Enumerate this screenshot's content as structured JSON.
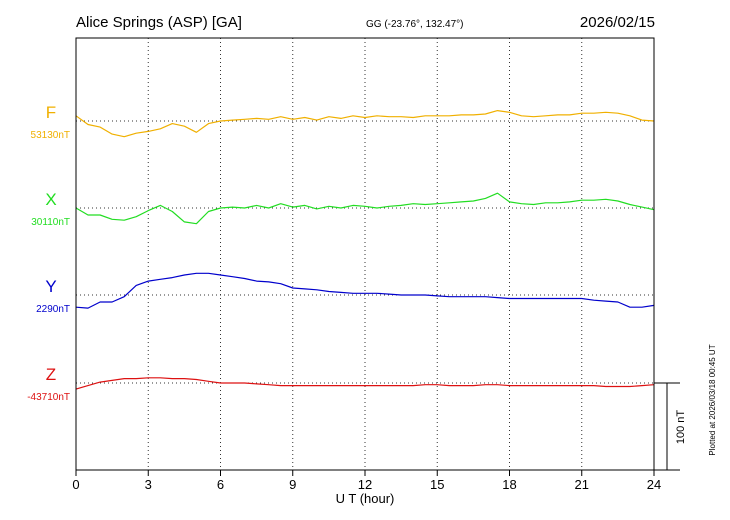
{
  "header": {
    "station": "Alice Springs (ASP)  [GA]",
    "coords": "GG (-23.76°, 132.47°)",
    "date": "2026/02/15"
  },
  "footer_note": "Plotted at 2026/03/18 00:45 UT",
  "scale_label": "100 nT",
  "chart_data": {
    "type": "line",
    "xlabel": "U T (hour)",
    "xlim": [
      0,
      24
    ],
    "x_ticks": [
      "0",
      "3",
      "6",
      "9",
      "12",
      "15",
      "18",
      "21",
      "24"
    ],
    "series": [
      {
        "name": "F",
        "baseline_label": "53130nT",
        "color": "#f0b000",
        "baseline": 53130,
        "x": [
          0,
          0.5,
          1,
          1.5,
          2,
          2.5,
          3,
          3.5,
          4,
          4.5,
          5,
          5.5,
          6,
          6.5,
          7,
          7.5,
          8,
          8.5,
          9,
          9.5,
          10,
          10.5,
          11,
          11.5,
          12,
          12.5,
          13,
          13.5,
          14,
          14.5,
          15,
          15.5,
          16,
          16.5,
          17,
          17.5,
          18,
          18.5,
          19,
          19.5,
          20,
          20.5,
          21,
          21.5,
          22,
          22.5,
          23,
          23.5,
          24
        ],
        "values": [
          53136,
          53126,
          53123,
          53115,
          53112,
          53116,
          53118,
          53121,
          53127,
          53124,
          53117,
          53127,
          53130,
          53131,
          53132,
          53133,
          53132,
          53135,
          53132,
          53134,
          53131,
          53135,
          53133,
          53136,
          53134,
          53136,
          53135,
          53135,
          53134,
          53136,
          53136,
          53136,
          53137,
          53137,
          53138,
          53142,
          53140,
          53136,
          53135,
          53136,
          53137,
          53137,
          53139,
          53139,
          53140,
          53139,
          53136,
          53131,
          53130
        ]
      },
      {
        "name": "X",
        "baseline_label": "30110nT",
        "color": "#22dd22",
        "baseline": 30110,
        "x": [
          0,
          0.5,
          1,
          1.5,
          2,
          2.5,
          3,
          3.5,
          4,
          4.5,
          5,
          5.5,
          6,
          6.5,
          7,
          7.5,
          8,
          8.5,
          9,
          9.5,
          10,
          10.5,
          11,
          11.5,
          12,
          12.5,
          13,
          13.5,
          14,
          14.5,
          15,
          15.5,
          16,
          16.5,
          17,
          17.5,
          18,
          18.5,
          19,
          19.5,
          20,
          20.5,
          21,
          21.5,
          22,
          22.5,
          23,
          23.5,
          24
        ],
        "values": [
          30110,
          30102,
          30102,
          30097,
          30096,
          30100,
          30107,
          30113,
          30106,
          30094,
          30092,
          30106,
          30110,
          30111,
          30110,
          30113,
          30110,
          30115,
          30111,
          30113,
          30109,
          30112,
          30110,
          30113,
          30112,
          30110,
          30112,
          30113,
          30115,
          30114,
          30115,
          30116,
          30117,
          30118,
          30121,
          30127,
          30117,
          30115,
          30114,
          30116,
          30116,
          30117,
          30119,
          30119,
          30120,
          30118,
          30114,
          30111,
          30108
        ]
      },
      {
        "name": "Y",
        "baseline_label": "2290nT",
        "color": "#0000cc",
        "baseline": 2290,
        "x": [
          0,
          0.5,
          1,
          1.5,
          2,
          2.5,
          3,
          3.5,
          4,
          4.5,
          5,
          5.5,
          6,
          6.5,
          7,
          7.5,
          8,
          8.5,
          9,
          9.5,
          10,
          10.5,
          11,
          11.5,
          12,
          12.5,
          13,
          13.5,
          14,
          14.5,
          15,
          15.5,
          16,
          16.5,
          17,
          17.5,
          18,
          18.5,
          19,
          19.5,
          20,
          20.5,
          21,
          21.5,
          22,
          22.5,
          23,
          23.5,
          24
        ],
        "values": [
          2276,
          2275,
          2282,
          2282,
          2288,
          2301,
          2306,
          2308,
          2310,
          2313,
          2315,
          2315,
          2313,
          2311,
          2309,
          2306,
          2305,
          2303,
          2298,
          2297,
          2296,
          2294,
          2293,
          2292,
          2292,
          2292,
          2291,
          2290,
          2290,
          2290,
          2289,
          2288,
          2288,
          2288,
          2288,
          2287,
          2286,
          2286,
          2286,
          2286,
          2286,
          2286,
          2286,
          2284,
          2283,
          2282,
          2276,
          2276,
          2278
        ]
      },
      {
        "name": "Z",
        "baseline_label": "-43710nT",
        "color": "#dd1111",
        "baseline": -43710,
        "x": [
          0,
          0.5,
          1,
          1.5,
          2,
          2.5,
          3,
          3.5,
          4,
          4.5,
          5,
          5.5,
          6,
          6.5,
          7,
          7.5,
          8,
          8.5,
          9,
          9.5,
          10,
          10.5,
          11,
          11.5,
          12,
          12.5,
          13,
          13.5,
          14,
          14.5,
          15,
          15.5,
          16,
          16.5,
          17,
          17.5,
          18,
          18.5,
          19,
          19.5,
          20,
          20.5,
          21,
          21.5,
          22,
          22.5,
          23,
          23.5,
          24
        ],
        "values": [
          -43717,
          -43713,
          -43709,
          -43707,
          -43705,
          -43705,
          -43704,
          -43704,
          -43705,
          -43705,
          -43706,
          -43708,
          -43710,
          -43710,
          -43710,
          -43711,
          -43712,
          -43713,
          -43713,
          -43713,
          -43713,
          -43713,
          -43713,
          -43713,
          -43713,
          -43713,
          -43713,
          -43713,
          -43713,
          -43712,
          -43712,
          -43713,
          -43713,
          -43713,
          -43712,
          -43712,
          -43713,
          -43713,
          -43713,
          -43713,
          -43713,
          -43713,
          -43713,
          -43713,
          -43714,
          -43714,
          -43714,
          -43713,
          -43712
        ]
      }
    ]
  }
}
